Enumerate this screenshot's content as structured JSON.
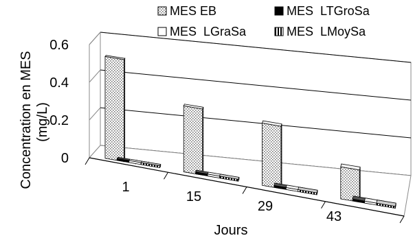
{
  "chart_data": {
    "type": "bar",
    "title": "",
    "ylabel": "Concentration en MES (mg/L)",
    "ylabel_lines": [
      "Concentration en MES",
      "(mg/L)"
    ],
    "xlabel": "Jours",
    "ylim": [
      0,
      0.6
    ],
    "yticks": [
      "0",
      "0.2",
      "0.4",
      "0.6"
    ],
    "categories": [
      "1",
      "15",
      "29",
      "43"
    ],
    "legend_position": "top",
    "grid": true,
    "series": [
      {
        "name": "MES EB",
        "values": [
          0.54,
          0.35,
          0.33,
          0.17
        ],
        "pattern": "dots"
      },
      {
        "name": "MES  LTGroSa",
        "values": [
          0.01,
          0.01,
          0.01,
          0.01
        ],
        "pattern": "solid"
      },
      {
        "name": "MES  LGraSa",
        "values": [
          0.01,
          0.01,
          0.01,
          0.01
        ],
        "pattern": "white"
      },
      {
        "name": "MES  LMoySa",
        "values": [
          0.01,
          0.01,
          0.01,
          0.01
        ],
        "pattern": "stripes"
      }
    ]
  }
}
